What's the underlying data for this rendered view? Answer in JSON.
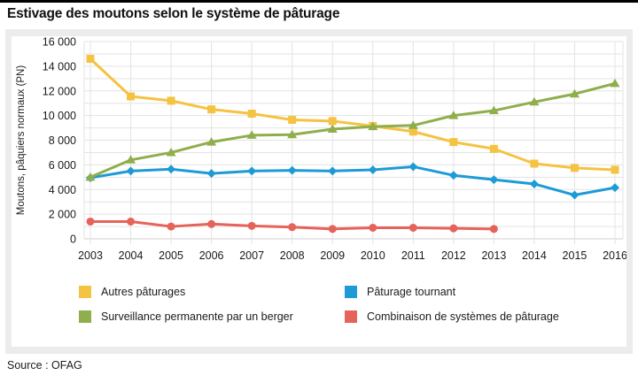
{
  "page": {
    "title": "Estivage des moutons selon le système de pâturage",
    "source": "Source : OFAG"
  },
  "style": {
    "panel_background": "#ececec",
    "plot_background": "#ffffff",
    "grid_color": "#e3e3e3",
    "axis_color": "#d2d2d2",
    "tick_text_color": "#1a1a1a",
    "top_bar_color": "#000000"
  },
  "chart_data": {
    "type": "line",
    "title": "Estivage des moutons selon le système de pâturage",
    "xlabel": "",
    "ylabel": "Moutons, pâquiers normaux (PN)",
    "x": [
      2003,
      2004,
      2005,
      2006,
      2007,
      2008,
      2009,
      2010,
      2011,
      2012,
      2013,
      2014,
      2015,
      2016
    ],
    "ylim": [
      0,
      16000
    ],
    "ytick_step": 2000,
    "grid": true,
    "legend_position": "bottom",
    "legend_order": [
      0,
      2,
      1,
      3
    ],
    "series": [
      {
        "name": "Autres pâturages",
        "color": "#f5c342",
        "marker": "square",
        "values": [
          14600,
          11550,
          11200,
          10500,
          10150,
          9650,
          9550,
          9150,
          8700,
          7850,
          7300,
          6100,
          5750,
          5600
        ]
      },
      {
        "name": "Surveillance permanente par un berger",
        "color": "#8fae4c",
        "marker": "triangle",
        "values": [
          5000,
          6400,
          7000,
          7850,
          8400,
          8450,
          8900,
          9100,
          9200,
          10000,
          10400,
          11100,
          11750,
          12600
        ]
      },
      {
        "name": "Pâturage tournant",
        "color": "#1e9bd7",
        "marker": "diamond",
        "values": [
          4950,
          5500,
          5650,
          5300,
          5500,
          5550,
          5500,
          5600,
          5850,
          5150,
          4800,
          4450,
          3550,
          4150
        ]
      },
      {
        "name": "Combinaison de systèmes de pâturage",
        "color": "#e6635a",
        "marker": "circle",
        "values": [
          1400,
          1400,
          1000,
          1200,
          1050,
          950,
          800,
          900,
          900,
          850,
          800,
          null,
          null,
          null
        ]
      }
    ]
  }
}
